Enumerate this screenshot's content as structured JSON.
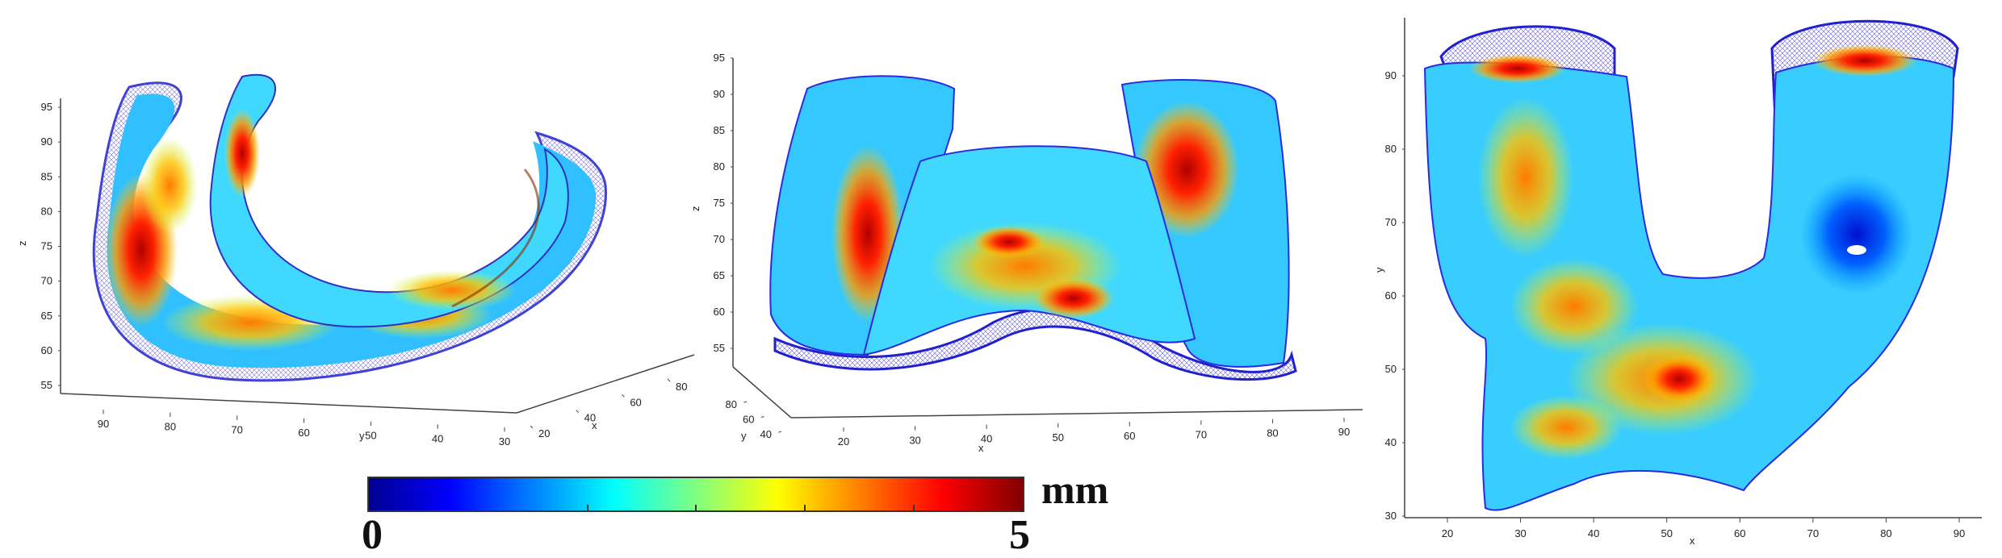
{
  "chart_data": [
    {
      "type": "surface-3d",
      "view": "left 3D view",
      "zlabel": "z",
      "ylabel": "y",
      "xlabel": "x",
      "z_ticks": [
        "95",
        "90",
        "85",
        "80",
        "75",
        "70",
        "65",
        "60",
        "55"
      ],
      "y_ticks": [
        "90",
        "80",
        "70",
        "60",
        "50",
        "40",
        "30"
      ],
      "x_ticks": [
        "20",
        "40",
        "60",
        "80"
      ],
      "zlim": [
        53,
        97
      ],
      "ylim": [
        30,
        95
      ],
      "xlim": [
        20,
        90
      ]
    },
    {
      "type": "surface-3d",
      "view": "front 3D view",
      "zlabel": "z",
      "ylabel": "y",
      "xlabel": "x",
      "z_ticks": [
        "95",
        "90",
        "85",
        "80",
        "75",
        "70",
        "65",
        "60",
        "55"
      ],
      "y_ticks": [
        "80",
        "60",
        "40"
      ],
      "x_ticks": [
        "20",
        "30",
        "40",
        "50",
        "60",
        "70",
        "80",
        "90"
      ],
      "zlim": [
        52,
        96
      ],
      "xlim": [
        15,
        92
      ]
    },
    {
      "type": "surface-2d",
      "view": "top view",
      "ylabel": "y",
      "xlabel": "x",
      "y_ticks": [
        "90",
        "80",
        "70",
        "60",
        "50",
        "40",
        "30"
      ],
      "x_ticks": [
        "20",
        "30",
        "40",
        "50",
        "60",
        "70",
        "80",
        "90"
      ],
      "xlim": [
        15,
        93
      ],
      "ylim": [
        29,
        96
      ]
    }
  ],
  "colorbar": {
    "min_label": "0",
    "max_label": "5",
    "unit": "mm",
    "range": [
      0,
      5
    ],
    "colormap": "jet",
    "colors": [
      "#00008f",
      "#0000ff",
      "#0080ff",
      "#00ffff",
      "#80ff80",
      "#ffff00",
      "#ff8000",
      "#ff0000",
      "#800000"
    ]
  }
}
